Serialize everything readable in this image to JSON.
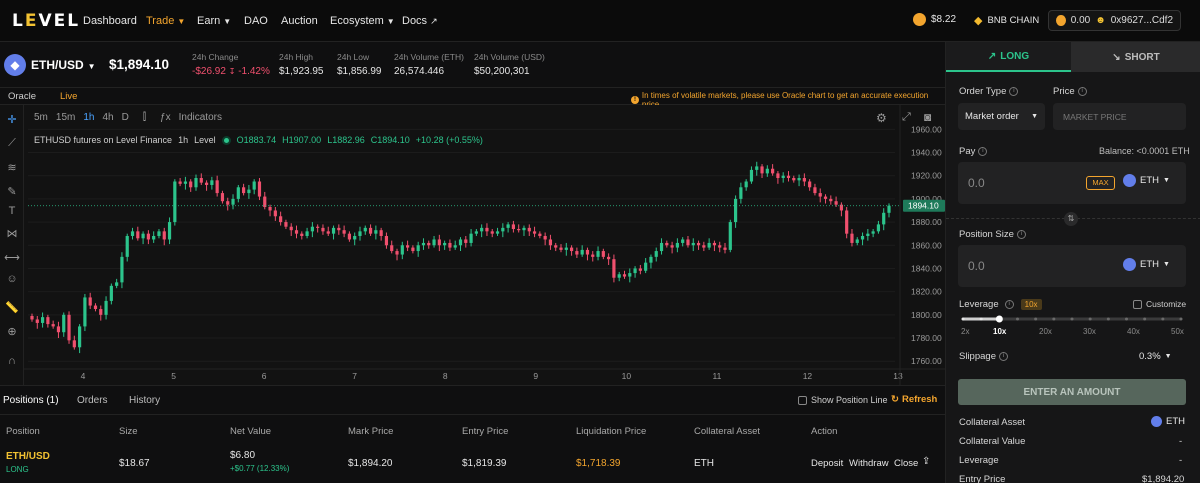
{
  "nav": {
    "logo": "LEVEL",
    "items": [
      {
        "label": "Dashboard"
      },
      {
        "label": "Trade"
      },
      {
        "label": "Earn"
      },
      {
        "label": "DAO"
      },
      {
        "label": "Auction"
      },
      {
        "label": "Ecosystem"
      },
      {
        "label": "Docs"
      }
    ],
    "lvl_price": "$8.22",
    "chain": "BNB CHAIN",
    "wallet_balance": "0.00",
    "wallet_address": "0x9627...Cdf2"
  },
  "market": {
    "pair": "ETH/USD",
    "price": "$1,894.10",
    "change_label": "24h Change",
    "change_value": "-$26.92",
    "change_pct": "-1.42%",
    "high_label": "24h High",
    "high_value": "$1,923.95",
    "low_label": "24h Low",
    "low_value": "$1,856.99",
    "vol_eth_label": "24h Volume (ETH)",
    "vol_eth_value": "26,574.446",
    "vol_usd_label": "24h Volume (USD)",
    "vol_usd_value": "$50,200,301"
  },
  "oracle_bar": {
    "oracle": "Oracle",
    "live": "Live",
    "notice": "In times of volatile markets, please use Oracle chart to get an accurate execution price."
  },
  "chart_toolbar": {
    "intervals": [
      "5m",
      "15m",
      "1h",
      "4h",
      "D"
    ],
    "active_interval": "1h",
    "indicators": "Indicators"
  },
  "chart_data": {
    "type": "candlestick",
    "title": "ETHUSD futures on Level Finance",
    "interval": "1h",
    "source": "Level",
    "ohlc": {
      "o": "O1883.74",
      "h": "H1907.00",
      "l": "L1882.96",
      "c": "C1894.10",
      "chg": "+10.28 (+0.55%)"
    },
    "x_ticks": [
      "4",
      "5",
      "6",
      "7",
      "8",
      "9",
      "10",
      "11",
      "12",
      "13"
    ],
    "y_ticks": [
      "1960.00",
      "1940.00",
      "1920.00",
      "1900.00",
      "1880.00",
      "1860.00",
      "1840.00",
      "1820.00",
      "1800.00",
      "1780.00",
      "1760.00"
    ],
    "ylim": [
      1755,
      1962
    ],
    "last_price_label": "1894.10",
    "last_price": 1894.1,
    "closes": [
      1796,
      1793,
      1798,
      1792,
      1790,
      1785,
      1800,
      1778,
      1772,
      1790,
      1815,
      1808,
      1805,
      1800,
      1812,
      1825,
      1828,
      1850,
      1868,
      1872,
      1866,
      1870,
      1865,
      1868,
      1872,
      1865,
      1880,
      1915,
      1913,
      1915,
      1910,
      1918,
      1914,
      1912,
      1916,
      1905,
      1898,
      1895,
      1900,
      1910,
      1905,
      1908,
      1915,
      1902,
      1893,
      1890,
      1885,
      1880,
      1876,
      1873,
      1870,
      1868,
      1872,
      1876,
      1875,
      1872,
      1870,
      1875,
      1873,
      1870,
      1865,
      1868,
      1872,
      1875,
      1870,
      1873,
      1868,
      1860,
      1855,
      1852,
      1860,
      1858,
      1855,
      1860,
      1862,
      1860,
      1865,
      1860,
      1862,
      1858,
      1860,
      1865,
      1862,
      1870,
      1872,
      1875,
      1872,
      1870,
      1872,
      1875,
      1878,
      1874,
      1873,
      1875,
      1872,
      1870,
      1868,
      1865,
      1860,
      1858,
      1856,
      1858,
      1855,
      1852,
      1856,
      1852,
      1850,
      1855,
      1850,
      1848,
      1832,
      1835,
      1833,
      1836,
      1840,
      1838,
      1845,
      1850,
      1855,
      1862,
      1860,
      1858,
      1862,
      1865,
      1860,
      1862,
      1860,
      1858,
      1862,
      1860,
      1858,
      1856,
      1880,
      1900,
      1910,
      1915,
      1925,
      1928,
      1922,
      1926,
      1922,
      1918,
      1920,
      1918,
      1916,
      1918,
      1915,
      1910,
      1905,
      1902,
      1900,
      1898,
      1895,
      1890,
      1870,
      1862,
      1865,
      1868,
      1870,
      1872,
      1878,
      1888,
      1894.1
    ]
  },
  "bottom_tabs": {
    "positions": "Positions (1)",
    "orders": "Orders",
    "history": "History",
    "show_position_line": "Show Position Line",
    "refresh": "Refresh"
  },
  "positions_table": {
    "headers": [
      "Position",
      "Size",
      "Net Value",
      "Mark Price",
      "Entry Price",
      "Liquidation Price",
      "Collateral Asset",
      "Action"
    ],
    "rows": [
      {
        "pair": "ETH/USD",
        "side": "LONG",
        "size": "$18.67",
        "net_value": "$6.80",
        "net_change": "+$0.77 (12.33%)",
        "mark_price": "$1,894.20",
        "entry_price": "$1,819.39",
        "liq_price": "$1,718.39",
        "collateral": "ETH",
        "actions": [
          "Deposit",
          "Withdraw",
          "Close"
        ]
      }
    ]
  },
  "panel": {
    "long": "LONG",
    "short": "SHORT",
    "order_type_label": "Order Type",
    "order_type_value": "Market order",
    "price_label": "Price",
    "price_placeholder": "MARKET PRICE",
    "pay_label": "Pay",
    "balance": "Balance: <0.0001 ETH",
    "pay_value": "0.0",
    "max": "MAX",
    "pay_token": "ETH",
    "position_size_label": "Position Size",
    "position_size_value": "0.0",
    "position_token": "ETH",
    "leverage_label": "Leverage",
    "leverage_value": "10x",
    "customize": "Customize",
    "leverage_marks": [
      "2x",
      "10x",
      "20x",
      "30x",
      "40x",
      "50x"
    ],
    "leverage_level": 10,
    "slippage_label": "Slippage",
    "slippage_value": "0.3%",
    "enter_button": "ENTER AN AMOUNT",
    "collateral_asset_label": "Collateral Asset",
    "collateral_asset_value": "ETH",
    "collateral_value_label": "Collateral Value",
    "collateral_value_value": "-",
    "leverage_row_label": "Leverage",
    "leverage_row_value": "-",
    "entry_price_label": "Entry Price",
    "entry_price_value": "$1,894.20"
  },
  "colors": {
    "up": "#2cc48c",
    "down": "#f0506e",
    "accent": "#f3a52e",
    "eth": "#627eea"
  }
}
